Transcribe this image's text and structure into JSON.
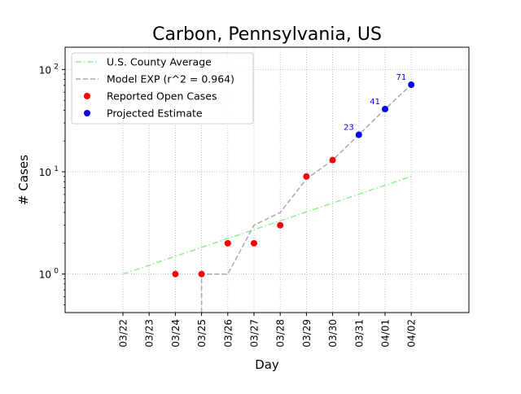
{
  "chart_data": {
    "type": "line",
    "title": "Carbon, Pennsylvania, US",
    "xlabel": "Day",
    "ylabel": "# Cases",
    "yscale": "log",
    "ylim": [
      0.42,
      165
    ],
    "yticks": [
      {
        "value": 1,
        "base": "10",
        "exp": "0"
      },
      {
        "value": 10,
        "base": "10",
        "exp": "1"
      },
      {
        "value": 100,
        "base": "10",
        "exp": "2"
      }
    ],
    "categories": [
      "03/22",
      "03/23",
      "03/24",
      "03/25",
      "03/26",
      "03/27",
      "03/28",
      "03/29",
      "03/30",
      "03/31",
      "04/01",
      "04/02"
    ],
    "grid": true,
    "legend_position": "upper left",
    "legend": [
      {
        "label": "U.S. County Average",
        "style": "dashdot",
        "color": "#90ee90"
      },
      {
        "label": "Model EXP (r^2 = 0.964)",
        "style": "dashed",
        "color": "#a9a9a9"
      },
      {
        "label": "Reported Open Cases",
        "style": "marker",
        "color": "#ff0000"
      },
      {
        "label": "Projected Estimate",
        "style": "marker",
        "color": "#0000ff"
      }
    ],
    "series": [
      {
        "name": "U.S. County Average",
        "kind": "line",
        "color": "#90ee90",
        "points": [
          {
            "x": "03/22",
            "y": 1
          },
          {
            "x": "04/02",
            "y": 9
          }
        ]
      },
      {
        "name": "Model EXP (r^2 = 0.964)",
        "kind": "line",
        "color": "#a9a9a9",
        "points": [
          {
            "x": "03/25",
            "y": 0.42
          },
          {
            "x": "03/25",
            "y": 1
          },
          {
            "x": "03/26",
            "y": 1
          },
          {
            "x": "03/27",
            "y": 3
          },
          {
            "x": "03/28",
            "y": 4
          },
          {
            "x": "03/29",
            "y": 8.5
          },
          {
            "x": "03/30",
            "y": 13
          },
          {
            "x": "03/31",
            "y": 23
          },
          {
            "x": "04/01",
            "y": 41
          },
          {
            "x": "04/02",
            "y": 71
          }
        ]
      },
      {
        "name": "Reported Open Cases",
        "kind": "scatter",
        "color": "#ff0000",
        "points": [
          {
            "x": "03/24",
            "y": 1
          },
          {
            "x": "03/25",
            "y": 1
          },
          {
            "x": "03/26",
            "y": 2
          },
          {
            "x": "03/27",
            "y": 2
          },
          {
            "x": "03/28",
            "y": 3
          },
          {
            "x": "03/29",
            "y": 9
          },
          {
            "x": "03/30",
            "y": 13
          }
        ]
      },
      {
        "name": "Projected Estimate",
        "kind": "scatter",
        "color": "#0000ff",
        "points": [
          {
            "x": "03/31",
            "y": 23,
            "label": "23"
          },
          {
            "x": "04/01",
            "y": 41,
            "label": "41"
          },
          {
            "x": "04/02",
            "y": 71,
            "label": "71"
          }
        ]
      }
    ]
  }
}
